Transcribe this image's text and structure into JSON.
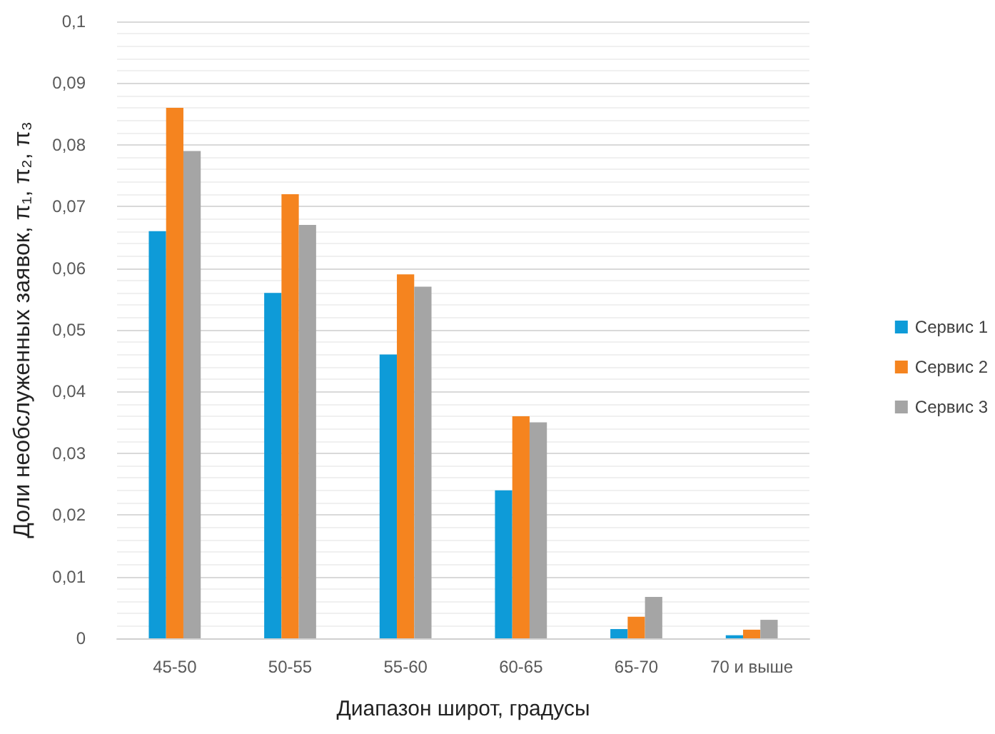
{
  "chart_data": {
    "type": "bar",
    "xlabel": "Диапазон широт, градусы",
    "ylabel": "Доли необслуженных заявок, π₁, π₂, π₃",
    "categories": [
      "45-50",
      "50-55",
      "55-60",
      "60-65",
      "65-70",
      "70 и выше"
    ],
    "series": [
      {
        "name": "Сервис 1",
        "color": "#0e9bd8",
        "values": [
          0.066,
          0.056,
          0.046,
          0.024,
          0.0015,
          0.0005
        ]
      },
      {
        "name": "Сервис 2",
        "color": "#f5841f",
        "values": [
          0.086,
          0.072,
          0.059,
          0.036,
          0.0035,
          0.0014
        ]
      },
      {
        "name": "Сервис 3",
        "color": "#a5a5a5",
        "values": [
          0.079,
          0.067,
          0.057,
          0.035,
          0.0067,
          0.003
        ]
      }
    ],
    "ylim": [
      0,
      0.1
    ],
    "yticks": [
      {
        "value": 0,
        "label": "0"
      },
      {
        "value": 0.01,
        "label": "0,01"
      },
      {
        "value": 0.02,
        "label": "0,02"
      },
      {
        "value": 0.03,
        "label": "0,03"
      },
      {
        "value": 0.04,
        "label": "0,04"
      },
      {
        "value": 0.05,
        "label": "0,05"
      },
      {
        "value": 0.06,
        "label": "0,06"
      },
      {
        "value": 0.07,
        "label": "0,07"
      },
      {
        "value": 0.08,
        "label": "0,08"
      },
      {
        "value": 0.09,
        "label": "0,09"
      },
      {
        "value": 0.1,
        "label": "0,1"
      }
    ],
    "grid": true,
    "legend": "right"
  }
}
